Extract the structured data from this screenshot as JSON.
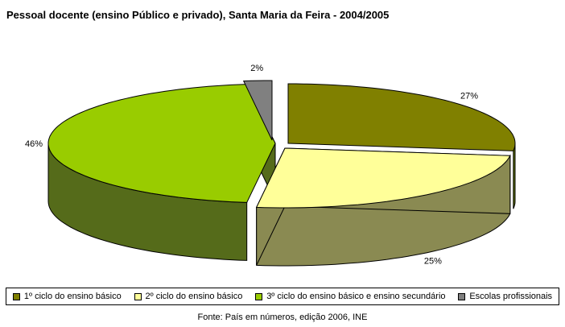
{
  "chart_data": {
    "type": "pie",
    "title": "Pessoal docente (ensino Público e privado), Santa Maria da Feira - 2004/2005",
    "categories": [
      "1º ciclo do ensino básico",
      "2º ciclo do ensino básico",
      "3º ciclo do ensino básico e ensino secundário",
      "Escolas profissionais"
    ],
    "values": [
      27,
      25,
      46,
      2
    ],
    "value_labels": [
      "27%",
      "25%",
      "46%",
      "2%"
    ],
    "colors": [
      "#808000",
      "#ffff99",
      "#99cc00",
      "#808080"
    ],
    "side_colors": [
      "#5c6e00",
      "#8a8a52",
      "#556b1a",
      "#4d4d4d"
    ],
    "legend_position": "bottom",
    "three_d": true,
    "exploded": true,
    "source": "Fonte: País em números, edição 2006, INE"
  }
}
